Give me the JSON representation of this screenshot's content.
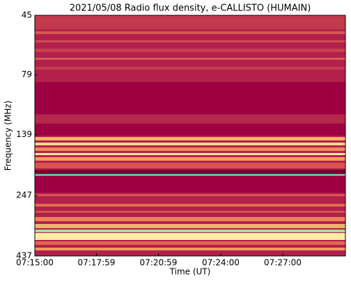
{
  "chart_data": {
    "type": "spectrogram",
    "title": "2021/05/08  Radio flux density, e-CALLISTO (HUMAIN)",
    "xlabel": "Time (UT)",
    "ylabel": "Frequency (MHz)",
    "xlim": [
      "07:15:00",
      "07:30:02"
    ],
    "xticks": [
      "07:15:00",
      "07:17:59",
      "07:20:59",
      "07:24:00",
      "07:27:00"
    ],
    "ylim": [
      45,
      437
    ],
    "yticks": [
      45,
      79,
      139,
      247,
      437
    ],
    "ylog": true,
    "yinverted": true
  }
}
